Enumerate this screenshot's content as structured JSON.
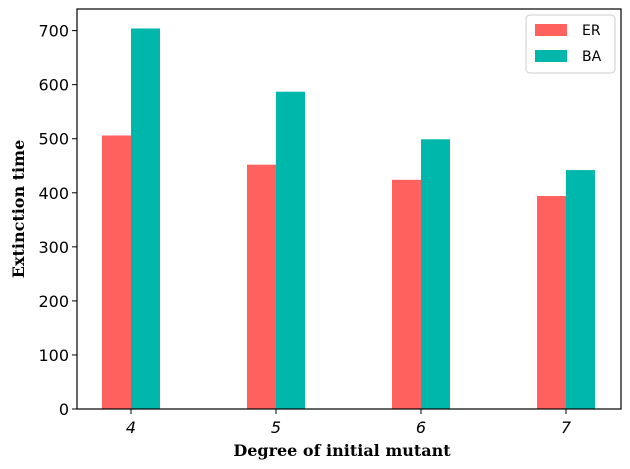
{
  "chart_data": {
    "type": "bar",
    "categories": [
      "4",
      "5",
      "6",
      "7"
    ],
    "series": [
      {
        "name": "ER",
        "color": "#ff615e",
        "values": [
          506,
          452,
          424,
          394
        ]
      },
      {
        "name": "BA",
        "color": "#00b7ac",
        "values": [
          704,
          587,
          499,
          442
        ]
      }
    ],
    "xlabel": "Degree of initial mutant",
    "ylabel": "Extinction time",
    "ylim": [
      0,
      740
    ],
    "yticks": [
      0,
      100,
      200,
      300,
      400,
      500,
      600,
      700
    ],
    "legend": "top-right",
    "grid": false
  }
}
